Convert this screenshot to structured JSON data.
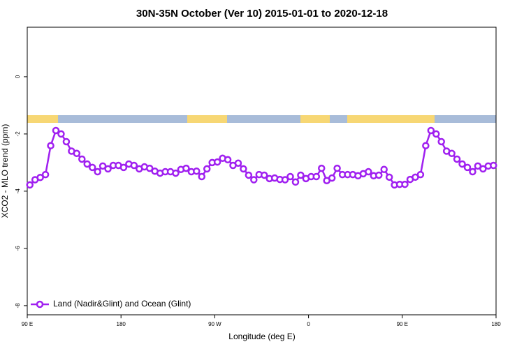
{
  "chart_data": {
    "type": "line",
    "title": "30N-35N October (Ver 10)   2015-01-01 to 2020-12-18",
    "x_label": "Longitude (deg E)",
    "y_label": "XCO2 - MLO trend (ppm)",
    "xlim": [
      90,
      540
    ],
    "xticks": [
      {
        "value": 90,
        "label": "90 E"
      },
      180,
      {
        "value": 270,
        "label": "90 W"
      },
      {
        "value": 360,
        "label": "0"
      },
      {
        "value": 450,
        "label": "90 E"
      },
      {
        "value": 540,
        "label": "180"
      }
    ],
    "ylim": [
      -8.32,
      1.73
    ],
    "yticks": [
      -8,
      -6,
      -4,
      -2,
      0
    ],
    "legend": "bottom-left",
    "x": [
      92.5,
      97.5,
      102.5,
      107.5,
      112.5,
      117.5,
      122.5,
      127.5,
      132.5,
      137.5,
      142.5,
      147.5,
      152.5,
      157.5,
      162.5,
      167.5,
      172.5,
      177.5,
      182.5,
      187.5,
      192.5,
      197.5,
      202.5,
      207.5,
      212.5,
      217.5,
      222.5,
      227.5,
      232.5,
      237.5,
      242.5,
      247.5,
      252.5,
      257.5,
      262.5,
      267.5,
      272.5,
      277.5,
      282.5,
      287.5,
      292.5,
      297.5,
      302.5,
      307.5,
      312.5,
      317.5,
      322.5,
      327.5,
      332.5,
      337.5,
      342.5,
      347.5,
      352.5,
      357.5,
      362.5,
      367.5,
      372.5,
      377.5,
      382.5,
      387.5,
      392.5,
      397.5,
      402.5,
      407.5,
      412.5,
      417.5,
      422.5,
      427.5,
      432.5,
      437.5,
      442.5,
      447.5,
      452.5,
      457.5,
      462.5,
      467.5,
      472.5,
      477.5,
      482.5,
      487.5,
      492.5,
      497.5,
      502.5,
      507.5,
      512.5,
      517.5,
      522.5,
      527.5,
      532.5,
      537.5
    ],
    "series": [
      {
        "name": "Land (Nadir&Glint) and Ocean (Glint)",
        "color": "#a020f0",
        "values": [
          -3.78,
          -3.6,
          -3.52,
          -3.42,
          -2.41,
          -1.88,
          -2.0,
          -2.27,
          -2.6,
          -2.68,
          -2.88,
          -3.05,
          -3.17,
          -3.32,
          -3.12,
          -3.22,
          -3.1,
          -3.1,
          -3.17,
          -3.05,
          -3.1,
          -3.22,
          -3.15,
          -3.2,
          -3.3,
          -3.37,
          -3.32,
          -3.32,
          -3.37,
          -3.24,
          -3.2,
          -3.32,
          -3.3,
          -3.49,
          -3.22,
          -3.0,
          -2.98,
          -2.85,
          -2.9,
          -3.1,
          -3.02,
          -3.22,
          -3.44,
          -3.6,
          -3.42,
          -3.44,
          -3.56,
          -3.54,
          -3.59,
          -3.6,
          -3.49,
          -3.68,
          -3.44,
          -3.56,
          -3.49,
          -3.49,
          -3.2,
          -3.63,
          -3.54,
          -3.2,
          -3.42,
          -3.42,
          -3.42,
          -3.46,
          -3.39,
          -3.32,
          -3.46,
          -3.44,
          -3.24,
          -3.51,
          -3.78,
          -3.76,
          -3.76,
          -3.59,
          -3.51,
          -3.42,
          -2.41,
          -1.88,
          -2.0,
          -2.27,
          -2.6,
          -2.68,
          -2.88,
          -3.05,
          -3.17,
          -3.32,
          -3.12,
          -3.22,
          -3.12,
          -3.1
        ]
      }
    ]
  }
}
